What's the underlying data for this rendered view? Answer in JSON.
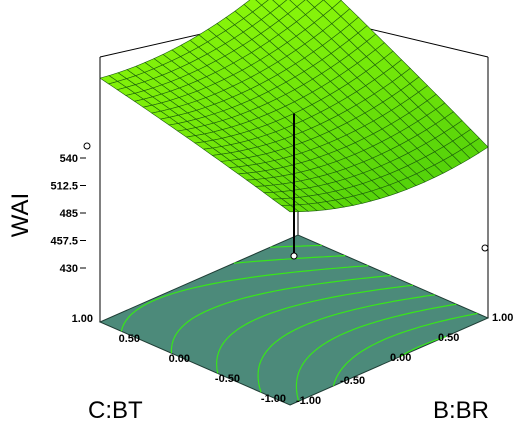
{
  "chart_data": {
    "type": "surface",
    "zlabel": "WAI",
    "xlabel": "B:BR",
    "ylabel": "C:BT",
    "x_ticks": [
      "-1.00",
      "-0.50",
      "0.00",
      "0.50",
      "1.00"
    ],
    "y_ticks": [
      "-1.00",
      "-0.50",
      "0.00",
      "0.50",
      "1.00"
    ],
    "z_ticks": [
      "430",
      "457.5",
      "485",
      "512.5",
      "540"
    ],
    "x_range": [
      -1,
      1
    ],
    "y_range": [
      -1,
      1
    ],
    "z_range": [
      430,
      540
    ],
    "corners": {
      "x_-1_y_-1": 473,
      "x_1_y_-1": 455,
      "x_1_y_1": 540,
      "x_-1_y_1": 514
    },
    "design_point": {
      "x": -1,
      "y": -1,
      "z": 473
    },
    "surface_color": "#7cf00a",
    "mesh_color": "#1b5f0c",
    "floor_color": "#4c8a7a",
    "contour_color": "#38e61a",
    "grid": false
  }
}
